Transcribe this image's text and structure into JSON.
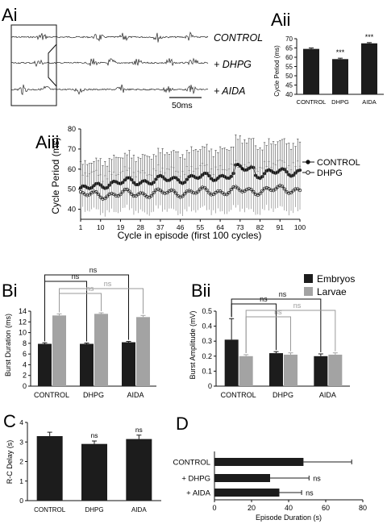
{
  "colors": {
    "embryos": "#1c1c1c",
    "larvae": "#a3a3a3",
    "axis": "#111111",
    "ns_gray": "#9a9a9a"
  },
  "chart_data": [
    {
      "panel": "Ai",
      "type": "other",
      "traces": [
        {
          "label": "CONTROL",
          "italic": true
        },
        {
          "label": "+ DHPG",
          "italic": true
        },
        {
          "label": "+ AIDA",
          "italic": true
        }
      ],
      "scalebar": "50ms"
    },
    {
      "panel": "Aii",
      "type": "bar",
      "categories": [
        "CONTROL",
        "DHPG",
        "AIDA"
      ],
      "values": [
        64.5,
        59,
        67.5
      ],
      "errors": [
        0.5,
        0.5,
        0.4
      ],
      "annotations": [
        "",
        "***",
        "***"
      ],
      "ylabel": "Cycle Period (ms)",
      "ylim": [
        40,
        70
      ],
      "yticks": [
        40,
        45,
        50,
        55,
        60,
        65,
        70
      ]
    },
    {
      "panel": "Aiii",
      "type": "line",
      "xlabel": "Cycle in episode (first 100 cycles)",
      "ylabel": "Cycle Period (ms)",
      "ylim": [
        35,
        80
      ],
      "yticks": [
        40,
        50,
        60,
        70,
        80
      ],
      "xlim": [
        1,
        100
      ],
      "xticks": [
        1,
        10,
        19,
        28,
        37,
        46,
        55,
        64,
        73,
        82,
        91,
        100
      ],
      "series": [
        {
          "name": "CONTROL",
          "marker": "filled",
          "start": 52,
          "end": 59,
          "error_start": 10,
          "error_end": 13
        },
        {
          "name": "DHPG",
          "marker": "open",
          "start": 47,
          "end": 50,
          "error_start": 8,
          "error_end": 11
        }
      ],
      "legend": "right"
    },
    {
      "panel": "Bi",
      "type": "bar",
      "categories": [
        "CONTROL",
        "DHPG",
        "AIDA"
      ],
      "series": [
        {
          "name": "Embryos",
          "values": [
            7.9,
            7.9,
            8.2
          ],
          "errors": [
            0.2,
            0.15,
            0.15
          ]
        },
        {
          "name": "Larvae",
          "values": [
            13.2,
            13.5,
            12.9
          ],
          "errors": [
            0.3,
            0.2,
            0.3
          ]
        }
      ],
      "ylabel": "Burst Duration (ms)",
      "ylim": [
        0,
        14
      ],
      "yticks": [
        0,
        2,
        4,
        6,
        8,
        10,
        12,
        14
      ],
      "brackets": [
        "ns",
        "ns",
        "ns",
        "ns"
      ]
    },
    {
      "panel": "Bii",
      "type": "bar",
      "categories": [
        "CONTROL",
        "DHPG",
        "AIDA"
      ],
      "series": [
        {
          "name": "Embryos",
          "values": [
            0.31,
            0.22,
            0.2
          ],
          "errors": [
            0.14,
            0.01,
            0.015
          ]
        },
        {
          "name": "Larvae",
          "values": [
            0.2,
            0.21,
            0.21
          ],
          "errors": [
            0.01,
            0.012,
            0.012
          ]
        }
      ],
      "ylabel": "Burst Amplitude (mV)",
      "ylim": [
        0,
        0.5
      ],
      "yticks": [
        0,
        0.1,
        0.2,
        0.3,
        0.4,
        0.5
      ],
      "brackets": [
        "ns",
        "ns",
        "ns",
        "ns"
      ],
      "legend": "top-right"
    },
    {
      "panel": "C",
      "type": "bar",
      "categories": [
        "CONTROL",
        "DHPG",
        "AIDA"
      ],
      "values": [
        3.3,
        2.9,
        3.15
      ],
      "errors": [
        0.2,
        0.15,
        0.2
      ],
      "annotations": [
        "",
        "ns",
        "ns"
      ],
      "ylabel": "R-C Delay (s)",
      "ylim": [
        0,
        4
      ],
      "yticks": [
        0,
        1,
        2,
        3,
        4
      ]
    },
    {
      "panel": "D",
      "type": "bar",
      "orientation": "horizontal",
      "categories": [
        "CONTROL",
        "+ DHPG",
        "+ AIDA"
      ],
      "values": [
        48,
        30,
        35
      ],
      "errors": [
        26,
        21,
        12
      ],
      "annotations": [
        "",
        "ns",
        "ns"
      ],
      "xlabel": "Episode Duration (s)",
      "xlim": [
        0,
        80
      ],
      "xticks": [
        0,
        20,
        40,
        60,
        80
      ]
    }
  ],
  "panel_labels": {
    "ai": "Ai",
    "aii": "Aii",
    "aiii": "Aiii",
    "bi": "Bi",
    "bii": "Bii",
    "c": "C",
    "d": "D"
  }
}
